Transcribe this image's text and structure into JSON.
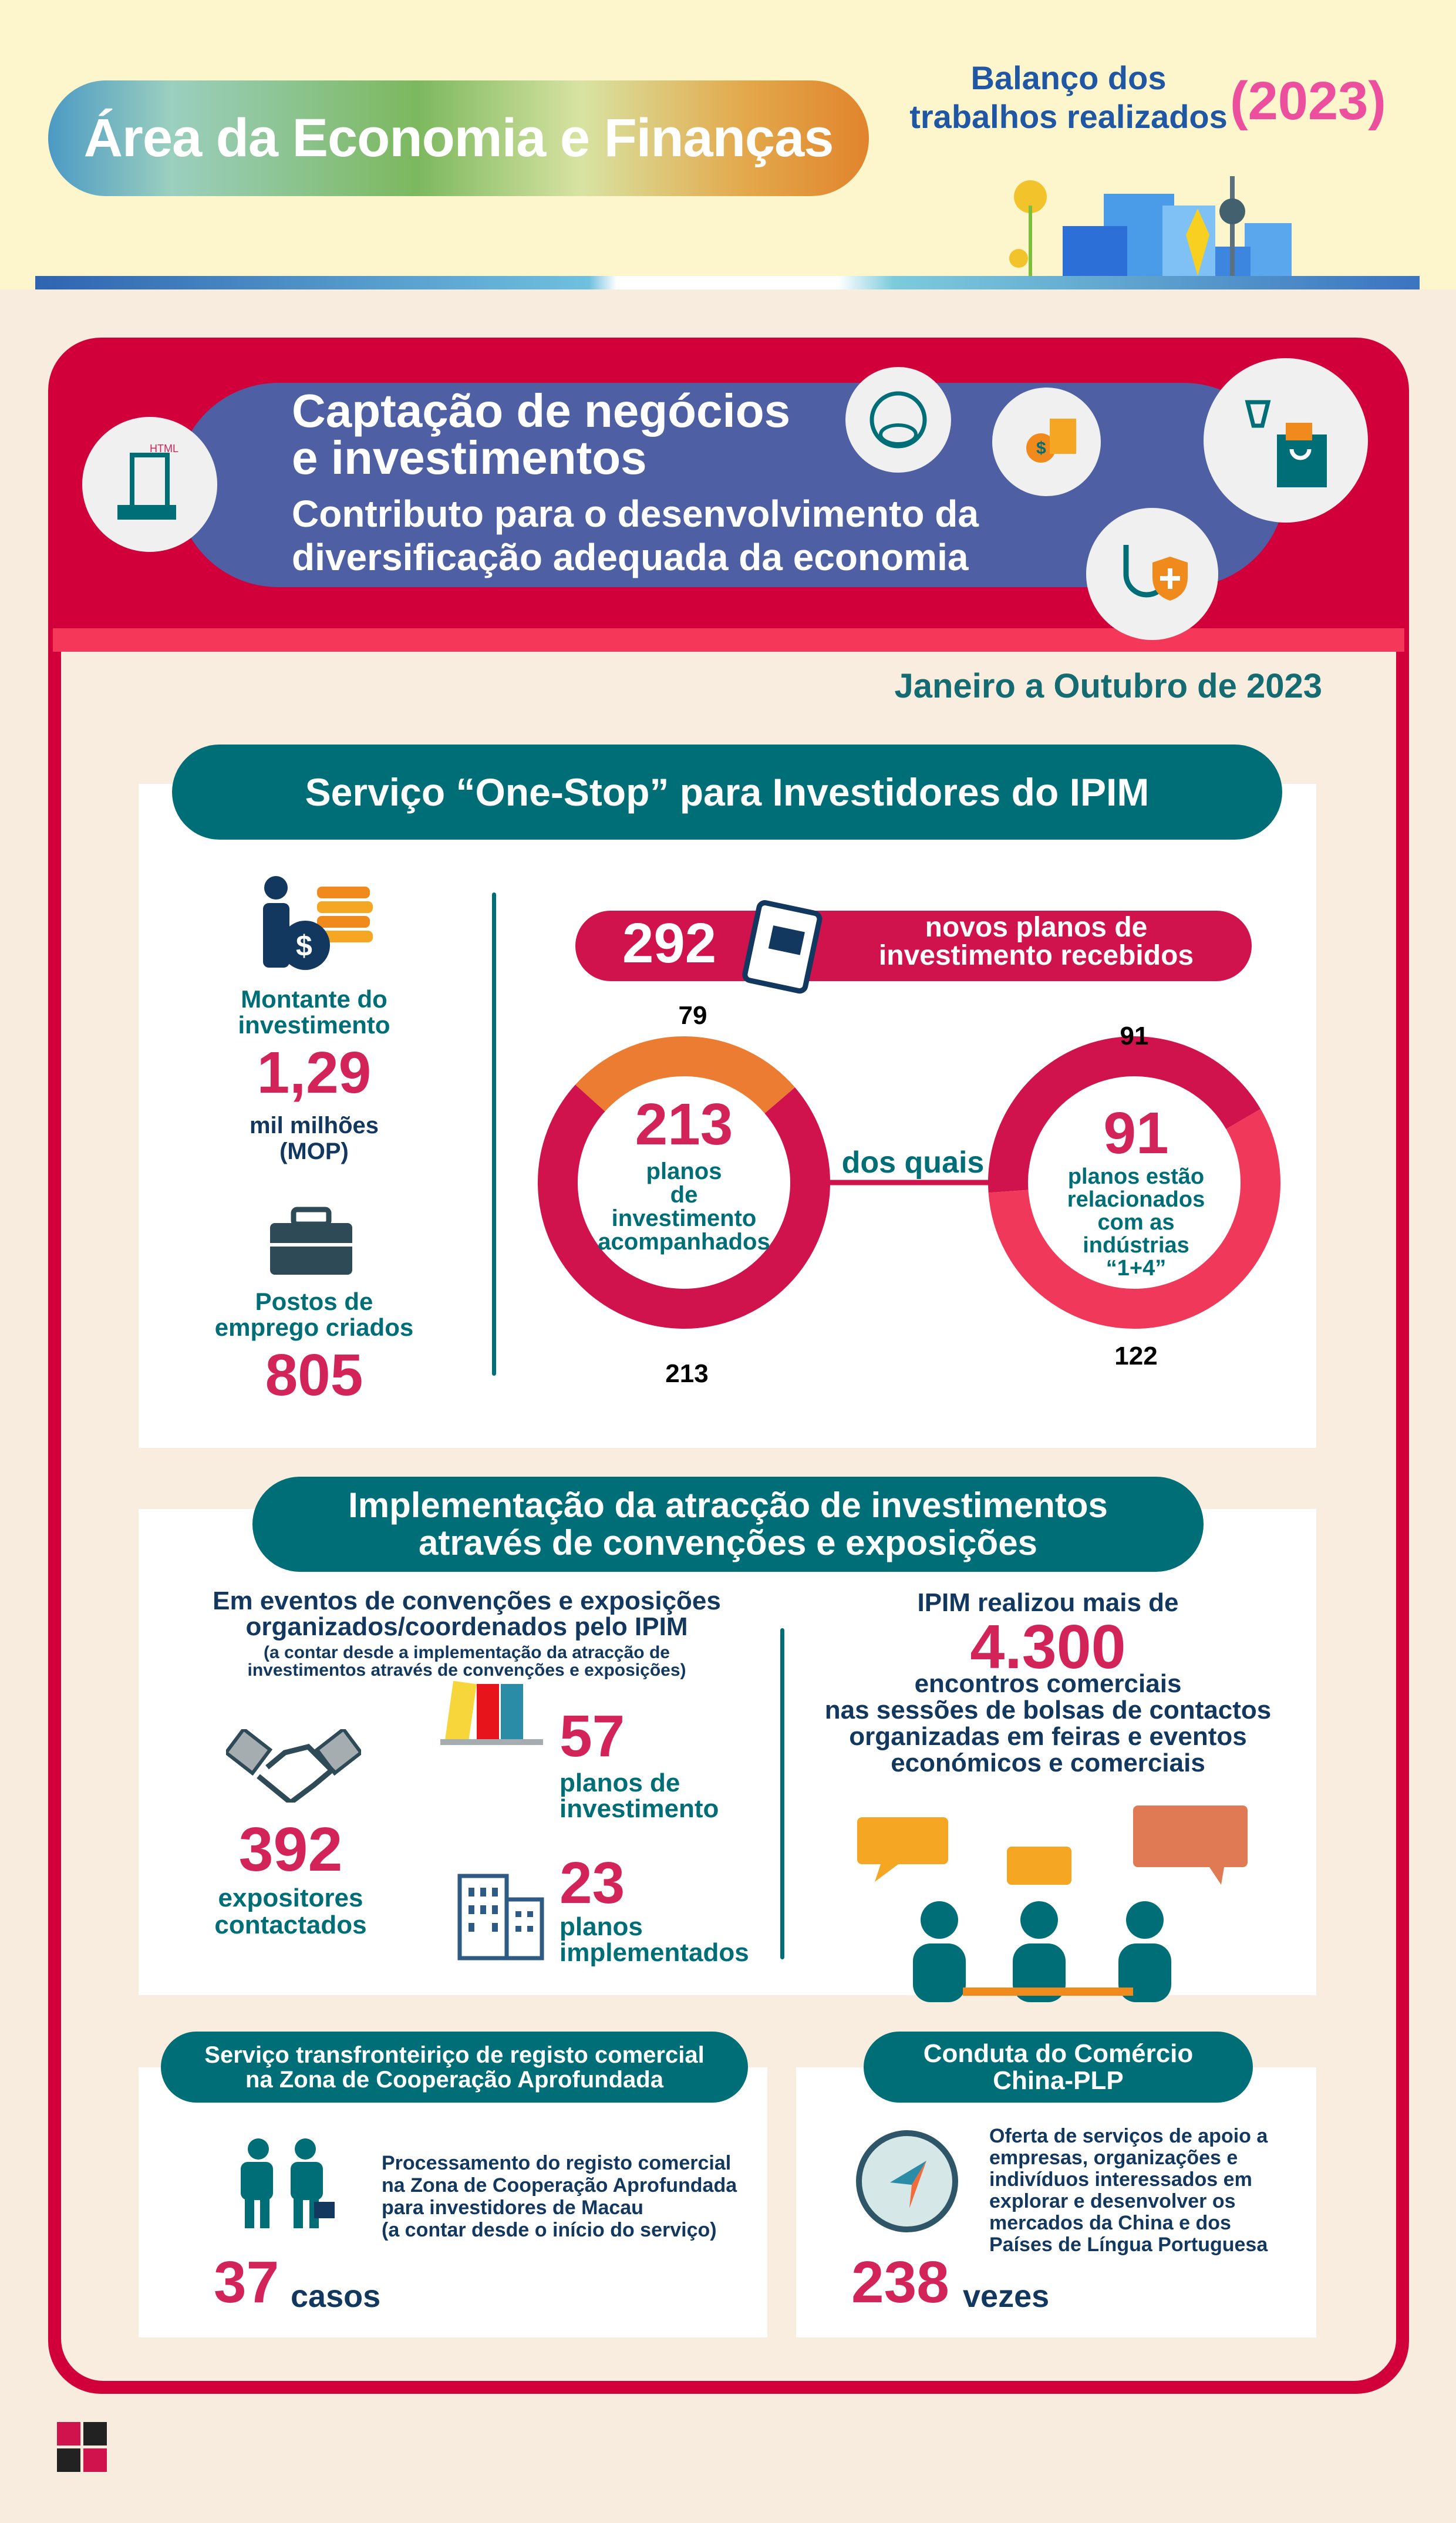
{
  "header": {
    "title": "Área da Economia e Finanças",
    "report_title": "Balanço dos\ntrabalhos realizados",
    "year": "(2023)"
  },
  "banner": {
    "title": "Captação de negócios\ne investimentos",
    "subtitle": "Contributo para o desenvolvimento da\ndiversificação adequada da economia",
    "period": "Janeiro a Outubro de 2023"
  },
  "one_stop": {
    "title": "Serviço “One-Stop” para Investidores do IPIM",
    "investment_label": "Montante do\ninvestimento",
    "investment_value": "1,29",
    "investment_unit": "mil milhões\n(MOP)",
    "jobs_label": "Postos de\nemprego criados",
    "jobs_value": "805",
    "plans_total": "292",
    "plans_label": "novos planos de\ninvestimento recebidos",
    "left_donut": {
      "center_value": "213",
      "center_label": "planos\nde\ninvestimento\nacompanhados",
      "top_label": "79",
      "bottom_label": "213",
      "segments": [
        {
          "value": 79,
          "color": "#eb7c32"
        },
        {
          "value": 213,
          "color": "#d0134c"
        }
      ]
    },
    "connector_label": "dos quais",
    "right_donut": {
      "center_value": "91",
      "center_label": "planos estão\nrelacionados\ncom as\nindústrias\n“1+4”",
      "top_label": "91",
      "bottom_label": "122",
      "segments": [
        {
          "value": 91,
          "color": "#d0134c"
        },
        {
          "value": 122,
          "color": "#f0385a"
        }
      ]
    }
  },
  "conventions": {
    "title": "Implementação da atracção de investimentos\natravés de convenções e exposições",
    "intro": "Em eventos de convenções e exposições\norganizados/coordenados pelo IPIM",
    "note": "(a contar desde a implementação da atracção de\ninvestimentos através de convenções e exposições)",
    "exhibitors_value": "392",
    "exhibitors_label": "expositores\ncontactados",
    "plans_value": "57",
    "plans_label": "planos de\ninvestimento",
    "implemented_value": "23",
    "implemented_label": "planos\nimplementados",
    "meetings_intro": "IPIM realizou mais de",
    "meetings_value": "4.300",
    "meetings_label": "encontros comerciais\nnas sessões de bolsas de contactos\norganizadas em feiras e eventos\neconómicos e comerciais"
  },
  "registry": {
    "title": "Serviço transfronteiriço de registo comercial\nna Zona de Cooperação Aprofundada",
    "description": "Processamento do registo comercial\nna Zona de Cooperação Aprofundada\npara investidores de Macau\n(a contar desde o início do serviço)",
    "value": "37",
    "unit": "casos"
  },
  "plp": {
    "title": "Conduta do Comércio\nChina-PLP",
    "description": "Oferta de serviços de apoio a\nempresas, organizações e\nindivíduos interessados em\nexplorar e desenvolver os\nmercados da China e dos\nPaíses de Língua Portuguesa",
    "value": "238",
    "unit": "vezes"
  },
  "colors": {
    "accent_red": "#d3245a",
    "teal": "#006e76",
    "navy": "#12385f",
    "card_red": "#d2003a",
    "banner_blue": "#4e60a3"
  }
}
